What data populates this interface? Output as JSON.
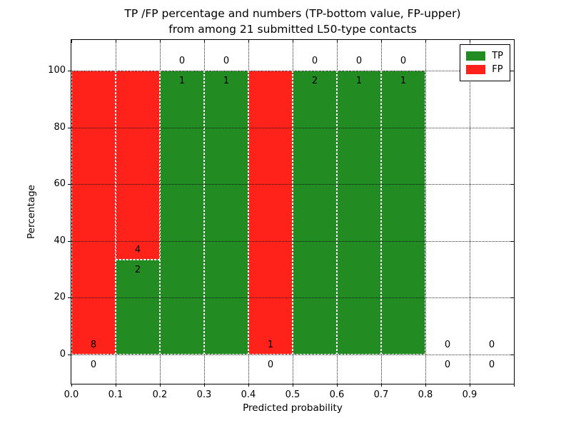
{
  "chart_data": {
    "type": "bar",
    "stacked": true,
    "title": "TP /FP percentage and numbers (TP-bottom value, FP-upper)\nfrom among 21 submitted L50-type contacts",
    "title_lines": [
      "TP /FP percentage and numbers (TP-bottom value, FP-upper)",
      "from among 21 submitted L50-type contacts"
    ],
    "xlabel": "Predicted probability",
    "ylabel": "Percentage",
    "xlim": [
      0.0,
      1.0
    ],
    "ylim": [
      -10,
      110
    ],
    "grid": "dotted",
    "x_ticks": [
      "0.0",
      "0.1",
      "0.2",
      "0.3",
      "0.4",
      "0.5",
      "0.6",
      "0.7",
      "0.8",
      "0.9"
    ],
    "x_tick_values": [
      0.0,
      0.1,
      0.2,
      0.3,
      0.4,
      0.5,
      0.6,
      0.7,
      0.8,
      0.9
    ],
    "y_ticks": [
      "0",
      "20",
      "40",
      "60",
      "80",
      "100"
    ],
    "y_tick_values": [
      0,
      20,
      40,
      60,
      80,
      100
    ],
    "bin_width": 0.1,
    "total_contacts": 21,
    "legend": {
      "position": "upper right",
      "entries": [
        {
          "label": "TP",
          "color": "#228b22"
        },
        {
          "label": "FP",
          "color": "#ff221a"
        }
      ]
    },
    "bins": [
      {
        "x_start": 0.0,
        "x_end": 0.1,
        "tp": 0,
        "fp": 8,
        "tp_pct": 0,
        "fp_pct": 100
      },
      {
        "x_start": 0.1,
        "x_end": 0.2,
        "tp": 2,
        "fp": 4,
        "tp_pct": 33.3,
        "fp_pct": 66.7
      },
      {
        "x_start": 0.2,
        "x_end": 0.3,
        "tp": 1,
        "fp": 0,
        "tp_pct": 100,
        "fp_pct": 0
      },
      {
        "x_start": 0.3,
        "x_end": 0.4,
        "tp": 1,
        "fp": 0,
        "tp_pct": 100,
        "fp_pct": 0
      },
      {
        "x_start": 0.4,
        "x_end": 0.5,
        "tp": 0,
        "fp": 1,
        "tp_pct": 0,
        "fp_pct": 100
      },
      {
        "x_start": 0.5,
        "x_end": 0.6,
        "tp": 2,
        "fp": 0,
        "tp_pct": 100,
        "fp_pct": 0
      },
      {
        "x_start": 0.6,
        "x_end": 0.7,
        "tp": 1,
        "fp": 0,
        "tp_pct": 100,
        "fp_pct": 0
      },
      {
        "x_start": 0.7,
        "x_end": 0.8,
        "tp": 1,
        "fp": 0,
        "tp_pct": 100,
        "fp_pct": 0
      },
      {
        "x_start": 0.8,
        "x_end": 0.9,
        "tp": 0,
        "fp": 0,
        "tp_pct": 0,
        "fp_pct": 0
      },
      {
        "x_start": 0.9,
        "x_end": 1.0,
        "tp": 0,
        "fp": 0,
        "tp_pct": 0,
        "fp_pct": 0
      }
    ]
  }
}
